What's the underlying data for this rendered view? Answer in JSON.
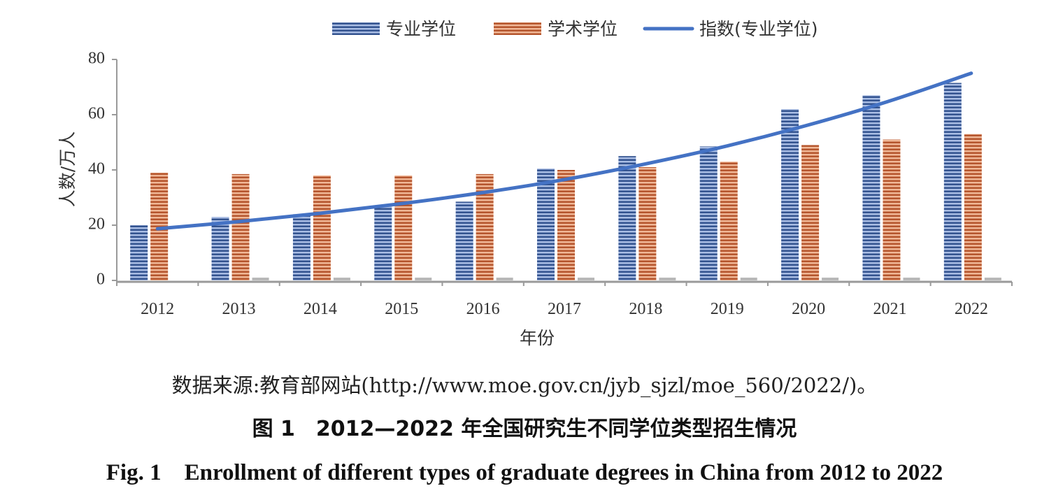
{
  "chart_data": {
    "type": "bar",
    "categories": [
      "2012",
      "2013",
      "2014",
      "2015",
      "2016",
      "2017",
      "2018",
      "2019",
      "2020",
      "2021",
      "2022"
    ],
    "series": [
      {
        "name": "专业学位",
        "kind": "bar",
        "color": "#4a6aaa",
        "values": [
          20,
          23,
          24,
          27,
          28.5,
          40.5,
          45,
          48.5,
          62,
          67,
          71.5
        ]
      },
      {
        "name": "学术学位",
        "kind": "bar",
        "color": "#c96b45",
        "values": [
          39,
          38.5,
          38,
          38,
          38.5,
          40,
          41,
          43,
          49,
          51,
          53
        ]
      },
      {
        "name": "指数(专业学位)",
        "kind": "line",
        "color": "#4472c4",
        "values": [
          18.7,
          21.3,
          24.3,
          27.8,
          31.8,
          36.5,
          42.2,
          48.7,
          56.3,
          65.0,
          75.0
        ]
      }
    ],
    "yticks": [
      "0",
      "20",
      "40",
      "60",
      "80"
    ],
    "ylim": [
      0,
      80
    ],
    "xlabel": "年份",
    "ylabel": "人数/万人",
    "legend_position": "top-center",
    "grid": false
  },
  "captions": {
    "source": "数据来源:教育部网站(http://www.moe.gov.cn/jyb_sjzl/moe_560/2022/)。",
    "title_zh": "图 1　2012—2022 年全国研究生不同学位类型招生情况",
    "title_en": "Fig. 1　Enrollment of different types of graduate degrees in China from 2012 to 2022"
  }
}
